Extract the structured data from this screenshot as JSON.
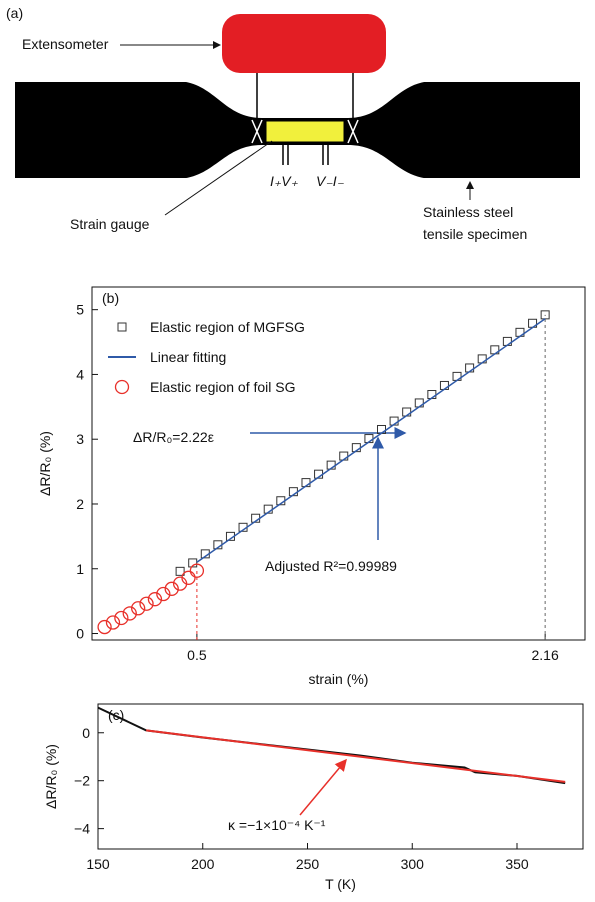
{
  "diagram": {
    "panel_label": "(a)",
    "extensometer": "Extensometer",
    "strain_gauge": "Strain gauge",
    "specimen_line1": "Stainless steel",
    "specimen_line2": "tensile specimen",
    "leads_left": "I₊V₊",
    "leads_right": "V₋I₋"
  },
  "chart_data": [
    {
      "type": "scatter",
      "panel_label": "(b)",
      "x_label": "strain (%)",
      "y_label": "ΔR/R₀ (%)",
      "xlim": [
        0,
        2.35
      ],
      "ylim": [
        -0.1,
        5.35
      ],
      "xticks": [
        0.5,
        2.16
      ],
      "yticks": [
        0,
        1,
        2,
        3,
        4,
        5
      ],
      "legend": "upper-left",
      "series": [
        {
          "name": "Elastic region of MGFSG",
          "marker": "square",
          "color": "#333333",
          "x": [
            0.42,
            0.48,
            0.54,
            0.6,
            0.66,
            0.72,
            0.78,
            0.84,
            0.9,
            0.96,
            1.02,
            1.08,
            1.14,
            1.2,
            1.26,
            1.32,
            1.38,
            1.44,
            1.5,
            1.56,
            1.62,
            1.68,
            1.74,
            1.8,
            1.86,
            1.92,
            1.98,
            2.04,
            2.1,
            2.16
          ],
          "values": [
            0.96,
            1.09,
            1.23,
            1.37,
            1.5,
            1.64,
            1.78,
            1.92,
            2.05,
            2.19,
            2.33,
            2.46,
            2.6,
            2.74,
            2.87,
            3.01,
            3.15,
            3.28,
            3.42,
            3.56,
            3.69,
            3.83,
            3.97,
            4.1,
            4.24,
            4.38,
            4.51,
            4.65,
            4.79,
            4.92
          ]
        },
        {
          "name": "Linear fitting",
          "marker": "line",
          "color": "#2f5aa8",
          "x": [
            0.5,
            2.16
          ],
          "values": [
            1.1,
            4.86
          ]
        },
        {
          "name": "Elastic region of foil SG",
          "marker": "circle",
          "color": "#e8302a",
          "x": [
            0.06,
            0.1,
            0.14,
            0.18,
            0.22,
            0.26,
            0.3,
            0.34,
            0.38,
            0.42,
            0.46,
            0.5
          ],
          "values": [
            0.1,
            0.17,
            0.24,
            0.31,
            0.39,
            0.46,
            0.53,
            0.61,
            0.69,
            0.77,
            0.86,
            0.97
          ]
        }
      ],
      "reference_lines": [
        {
          "x": 0.5,
          "y": 0.97,
          "color": "#e8302a"
        },
        {
          "x": 2.16,
          "y": 4.92,
          "color": "#666666"
        }
      ],
      "annotations": [
        "ΔR/R₀=2.22ε",
        "Adjusted R²=0.99989"
      ]
    },
    {
      "type": "line",
      "panel_label": "(c)",
      "x_label": "T (K)",
      "y_label": "ΔR/R₀ (%)",
      "xlim": [
        150,
        381.5
      ],
      "ylim": [
        -4.85,
        1.2
      ],
      "xticks": [
        150,
        200,
        250,
        300,
        350
      ],
      "yticks": [
        0,
        {
          "value": -2,
          "label": "−2"
        },
        {
          "value": -4,
          "label": "−4"
        }
      ],
      "series": [
        {
          "color": "#111111",
          "x": [
            150,
            173,
            200,
            225,
            250,
            275,
            300,
            325,
            330,
            350,
            373
          ],
          "values": [
            1.05,
            0.1,
            -0.2,
            -0.45,
            -0.7,
            -0.95,
            -1.25,
            -1.45,
            -1.65,
            -1.8,
            -2.1
          ]
        },
        {
          "color": "#e8302a",
          "x": [
            173,
            373
          ],
          "values": [
            0.1,
            -2.05
          ]
        }
      ],
      "annotations": [
        "κ =−1×10⁻⁴ K⁻¹"
      ]
    }
  ]
}
